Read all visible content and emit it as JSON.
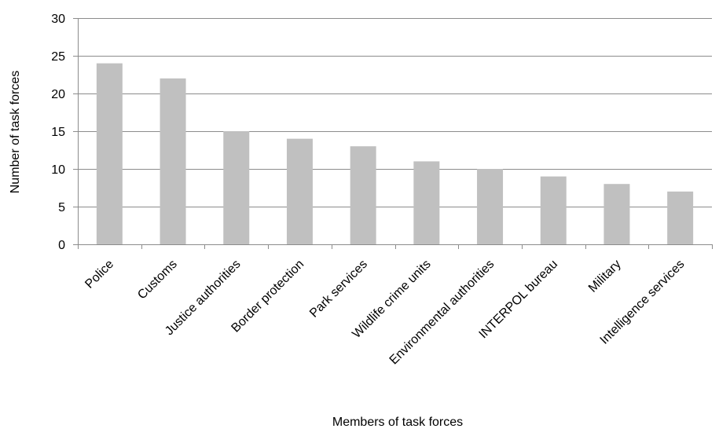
{
  "chart_data": {
    "type": "bar",
    "title": "",
    "xlabel": "Members of task forces",
    "ylabel": "Number of task forces",
    "categories": [
      "Police",
      "Customs",
      "Justice authorities",
      "Border protection",
      "Park services",
      "Wildlife crime units",
      "Environmental authorities",
      "INTERPOL bureau",
      "Military",
      "Intelligence services"
    ],
    "values": [
      24,
      22,
      15,
      14,
      13,
      11,
      10,
      9,
      8,
      7
    ],
    "ylim": [
      0,
      30
    ],
    "yticks": [
      0,
      5,
      10,
      15,
      20,
      25,
      30
    ],
    "grid": true,
    "legend": "none",
    "colors": {
      "bar": "#c0c0c0",
      "grid": "#8c8c8c",
      "axis": "#8c8c8c"
    }
  }
}
